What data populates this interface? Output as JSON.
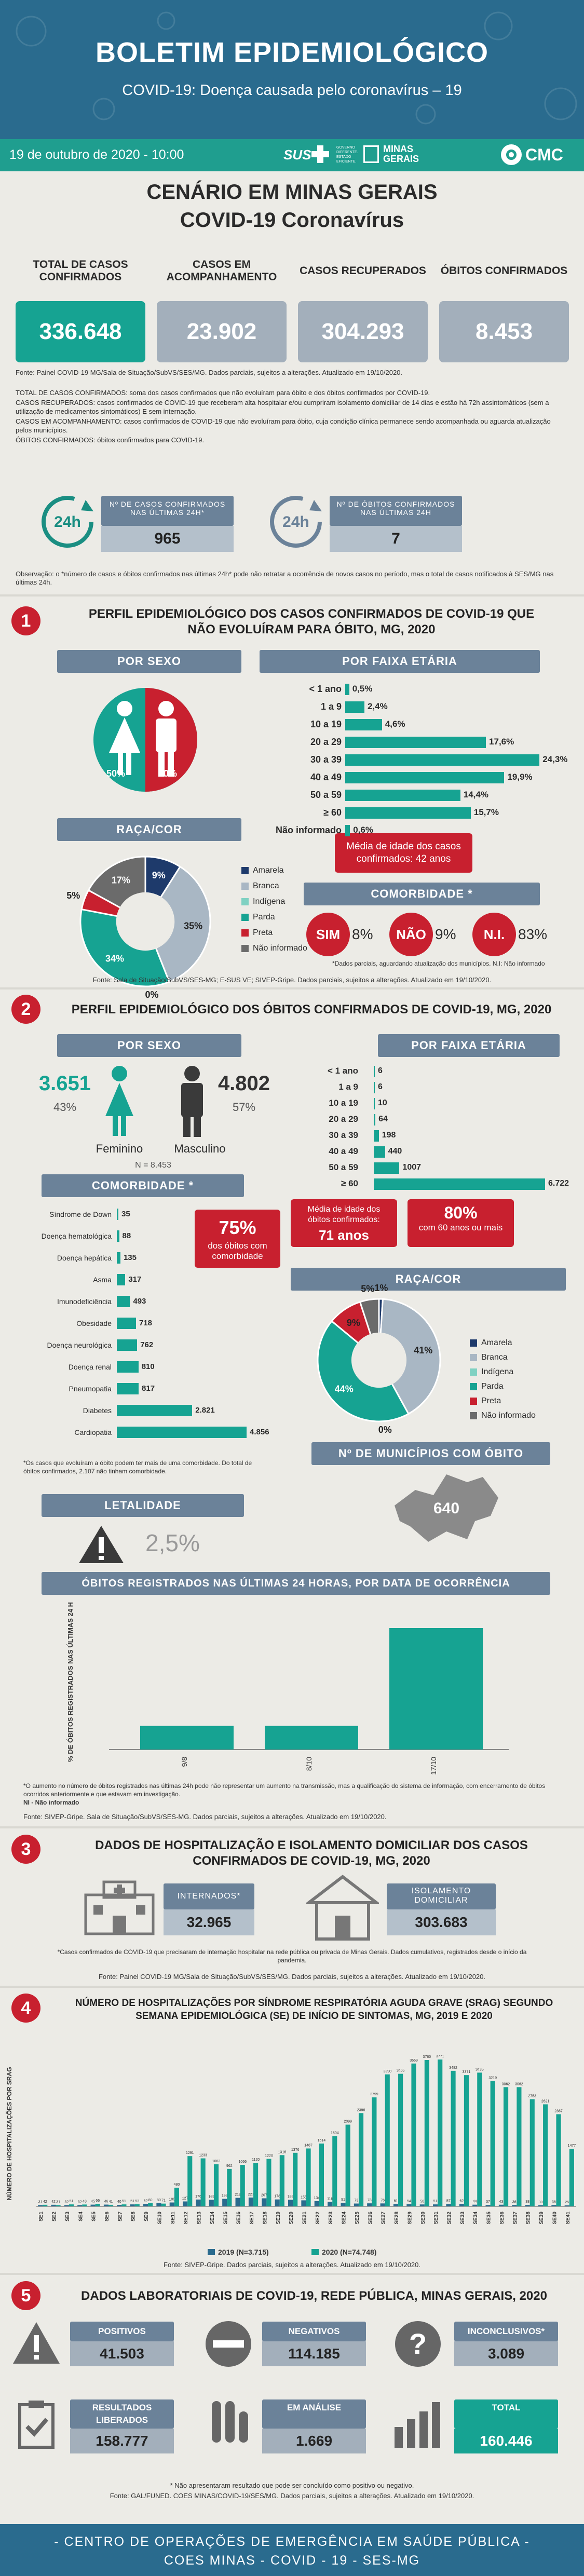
{
  "header": {
    "title": "BOLETIM EPIDEMIOLÓGICO",
    "subtitle": "COVID-19: Doença causada pelo coronavírus – 19",
    "date": "19 de outubro de 2020 - 10:00",
    "sus": "SUS",
    "governo": "GOVERNO DIFERENTE. ESTADO EFICIENTE.",
    "minas": "MINAS GERAIS",
    "cmc": "CMC"
  },
  "scenario": {
    "title": "CENÁRIO EM MINAS GERAIS",
    "subtitle": "COVID-19 Coronavírus"
  },
  "kpis": [
    {
      "label": "TOTAL DE CASOS CONFIRMADOS",
      "value": "336.648",
      "color": "#16a392"
    },
    {
      "label": "CASOS EM ACOMPANHAMENTO",
      "value": "23.902",
      "color": "#a3afbb"
    },
    {
      "label": "CASOS RECUPERADOS",
      "value": "304.293",
      "color": "#a3afbb"
    },
    {
      "label": "ÓBITOS CONFIRMADOS",
      "value": "8.453",
      "color": "#a3afbb"
    }
  ],
  "kpi_fonte": "Fonte: Painel COVID-19 MG/Sala de Situação/SubVS/SES/MG. Dados parciais, sujeitos a alterações. Atualizado em 19/10/2020.",
  "definitions": [
    "TOTAL DE CASOS CONFIRMADOS: soma dos casos confirmados que não evoluíram para óbito e dos óbitos confirmados por COVID-19.",
    "CASOS RECUPERADOS: casos confirmados de COVID-19 que receberam alta hospitalar e/ou cumpriram isolamento domiciliar de 14 dias e estão há 72h assintomáticos (sem a utilização de medicamentos sintomáticos) E sem internação.",
    "CASOS EM ACOMPANHAMENTO: casos confirmados de COVID-19 que não evoluíram para óbito, cuja condição clínica permanece sendo acompanhada ou aguarda atualização pelos municípios.",
    "ÓBITOS CONFIRMADOS: óbitos confirmados para COVID-19."
  ],
  "h24": {
    "cases_label": "Nº DE CASOS CONFIRMADOS NAS ÚLTIMAS 24H*",
    "cases": "965",
    "deaths_label": "Nº DE ÓBITOS CONFIRMADOS NAS ÚLTIMAS 24H",
    "deaths": "7",
    "icon_text": "24h",
    "obs": "Observação: o *número de casos e óbitos confirmados nas últimas 24h* pode não retratar a ocorrência de novos casos no período, mas o total de casos notificados à SES/MG nas últimas 24h."
  },
  "s1": {
    "num": "1",
    "title": "PERFIL EPIDEMIOLÓGICO DOS CASOS CONFIRMADOS DE COVID-19 QUE NÃO EVOLUÍRAM PARA ÓBITO, MG, 2020",
    "sexo_title": "POR SEXO",
    "sexo": [
      {
        "name": "Feminino",
        "pct": "50%",
        "color": "#16a392"
      },
      {
        "name": "Masculino",
        "pct": "50%",
        "color": "#c8202f"
      }
    ],
    "faixa_title": "POR FAIXA ETÁRIA",
    "faixa": [
      {
        "label": "< 1 ano",
        "value": 0.5,
        "text": "0,5%"
      },
      {
        "label": "1 a 9",
        "value": 2.4,
        "text": "2,4%"
      },
      {
        "label": "10 a 19",
        "value": 4.6,
        "text": "4,6%"
      },
      {
        "label": "20 a 29",
        "value": 17.6,
        "text": "17,6%"
      },
      {
        "label": "30 a 39",
        "value": 24.3,
        "text": "24,3%"
      },
      {
        "label": "40 a 49",
        "value": 19.9,
        "text": "19,9%"
      },
      {
        "label": "50 a 59",
        "value": 14.4,
        "text": "14,4%"
      },
      {
        "label": "≥ 60",
        "value": 15.7,
        "text": "15,7%"
      },
      {
        "label": "Não informado",
        "value": 0.6,
        "text": "0,6%"
      }
    ],
    "raca_title": "RAÇA/COR",
    "raca": [
      {
        "name": "Amarela",
        "value": 9,
        "text": "9%",
        "color": "#1e3a6b"
      },
      {
        "name": "Branca",
        "value": 35,
        "text": "35%",
        "color": "#a9b7c4"
      },
      {
        "name": "Indígena",
        "value": 0,
        "text": "0%",
        "color": "#7fd1c2"
      },
      {
        "name": "Parda",
        "value": 34,
        "text": "34%",
        "color": "#16a392"
      },
      {
        "name": "Preta",
        "value": 5,
        "text": "5%",
        "color": "#c8202f"
      },
      {
        "name": "Não informado",
        "value": 17,
        "text": "17%",
        "color": "#6b6b6b"
      }
    ],
    "media": "Média de idade dos casos confirmados: 42 anos",
    "comorb_title": "COMORBIDADE *",
    "comorb": [
      {
        "label": "SIM",
        "pct": "8%",
        "color": "#c8202f"
      },
      {
        "label": "NÃO",
        "pct": "9%",
        "color": "#c8202f"
      },
      {
        "label": "N.I.",
        "pct": "83%",
        "color": "#c8202f"
      }
    ],
    "comorb_note": "*Dados parciais, aguardando atualização dos municípios. N.I: Não informado",
    "fonte": "Fonte: Sala de Situação/SubVS/SES-MG; E-SUS VE; SIVEP-Gripe. Dados parciais, sujeitos a alterações. Atualizado em 19/10/2020."
  },
  "s2": {
    "num": "2",
    "title": "PERFIL EPIDEMIOLÓGICO DOS ÓBITOS CONFIRMADOS DE COVID-19, MG, 2020",
    "sexo_title": "POR SEXO",
    "fem": {
      "value": "3.651",
      "pct": "43%",
      "name": "Feminino"
    },
    "masc": {
      "value": "4.802",
      "pct": "57%",
      "name": "Masculino"
    },
    "n": "N = 8.453",
    "faixa_title": "POR FAIXA ETÁRIA",
    "faixa": [
      {
        "label": "< 1 ano",
        "value": 6,
        "text": "6"
      },
      {
        "label": "1 a 9",
        "value": 6,
        "text": "6"
      },
      {
        "label": "10 a 19",
        "value": 10,
        "text": "10"
      },
      {
        "label": "20 a 29",
        "value": 64,
        "text": "64"
      },
      {
        "label": "30 a 39",
        "value": 198,
        "text": "198"
      },
      {
        "label": "40 a 49",
        "value": 440,
        "text": "440"
      },
      {
        "label": "50 a 59",
        "value": 1007,
        "text": "1007"
      },
      {
        "label": "≥ 60",
        "value": 6722,
        "text": "6.722"
      }
    ],
    "media": "Média de idade dos óbitos confirmados:",
    "media_val": "71 anos",
    "pct80": "80%",
    "pct80_txt": "com 60 anos ou mais",
    "comorb_title": "COMORBIDADE *",
    "comorb": [
      {
        "label": "Síndrome de Down",
        "value": 35,
        "text": "35"
      },
      {
        "label": "Doença hematológica",
        "value": 88,
        "text": "88"
      },
      {
        "label": "Doença hepática",
        "value": 135,
        "text": "135"
      },
      {
        "label": "Asma",
        "value": 317,
        "text": "317"
      },
      {
        "label": "Imunodeficiência",
        "value": 493,
        "text": "493"
      },
      {
        "label": "Obesidade",
        "value": 718,
        "text": "718"
      },
      {
        "label": "Doença neurológica",
        "value": 762,
        "text": "762"
      },
      {
        "label": "Doença renal",
        "value": 810,
        "text": "810"
      },
      {
        "label": "Pneumopatia",
        "value": 817,
        "text": "817"
      },
      {
        "label": "Diabetes",
        "value": 2821,
        "text": "2.821"
      },
      {
        "label": "Cardiopatia",
        "value": 4856,
        "text": "4.856"
      }
    ],
    "comorb75": "75%",
    "comorb75_txt": "dos óbitos com comorbidade",
    "comorb_note": "*Os casos que evoluíram a óbito podem ter mais de uma comorbidade. Do total de óbitos confirmados, 2.107 não tinham comorbidade.",
    "raca_title": "RAÇA/COR",
    "raca": [
      {
        "name": "Amarela",
        "value": 1,
        "text": "1%",
        "color": "#1e3a6b"
      },
      {
        "name": "Branca",
        "value": 41,
        "text": "41%",
        "color": "#a9b7c4"
      },
      {
        "name": "Indígena",
        "value": 0,
        "text": "0%",
        "color": "#7fd1c2"
      },
      {
        "name": "Parda",
        "value": 44,
        "text": "44%",
        "color": "#16a392"
      },
      {
        "name": "Preta",
        "value": 9,
        "text": "9%",
        "color": "#c8202f"
      },
      {
        "name": "Não informado",
        "value": 5,
        "text": "5%",
        "color": "#6b6b6b"
      }
    ],
    "mun_title": "Nº DE MUNICÍPIOS COM ÓBITO",
    "mun": "640",
    "let_title": "LETALIDADE",
    "let": "2,5%",
    "daily_title": "ÓBITOS REGISTRADOS NAS ÚLTIMAS 24 HORAS, POR DATA DE OCORRÊNCIA",
    "daily_ylabel": "% DE ÓBITOS REGISTRADOS NAS ÚLTIMAS 24 H",
    "daily": {
      "categories": [
        "9/8",
        "8/10",
        "17/10"
      ],
      "values": [
        14,
        14,
        72
      ]
    },
    "daily_note": "*O aumento no número de óbitos registrados nas últimas 24h pode não representar um aumento na transmissão, mas a qualificação do sistema de informação, com encerramento de óbitos ocorridos anteriormente e que estavam em investigação.",
    "daily_ni": "NI - Não informado",
    "fonte": "Fonte: SIVEP-Gripe. Sala de Situação/SubVS/SES-MG. Dados parciais, sujeitos a alterações. Atualizado em 19/10/2020."
  },
  "s3": {
    "num": "3",
    "title": "DADOS DE HOSPITALIZAÇÃO E ISOLAMENTO DOMICILIAR DOS CASOS CONFIRMADOS DE COVID-19, MG, 2020",
    "int_label": "INTERNADOS*",
    "int": "32.965",
    "iso_label": "ISOLAMENTO DOMICILIAR",
    "iso": "303.683",
    "note": "*Casos confirmados de COVID-19 que precisaram de internação hospitalar na rede pública ou privada de Minas Gerais. Dados cumulativos, registrados desde o início da pandemia.",
    "fonte": "Fonte: Painel COVID-19 MG/Sala de Situação/SubVS/SES/MG. Dados parciais, sujeitos a alterações. Atualizado em 19/10/2020."
  },
  "s4": {
    "num": "4",
    "title": "NÚMERO DE HOSPITALIZAÇÕES POR SÍNDROME RESPIRATÓRIA AGUDA GRAVE (SRAG) SEGUNDO SEMANA EPIDEMIOLÓGICA (SE) DE INÍCIO DE SINTOMAS, MG, 2019 E 2020",
    "ylabel": "NÚMERO DE HOSPITALIZAÇÕES POR SRAG",
    "legend": [
      "2019 (N=3.715)",
      "2020 (N=74.748)"
    ],
    "fonte": "Fonte: SIVEP-Gripe. Dados parciais, sujeitos a alterações. Atualizado em 19/10/2020."
  },
  "chart_data": {
    "type": "bar",
    "title": "NÚMERO DE HOSPITALIZAÇÕES POR SÍNDROME RESPIRATÓRIA AGUDA GRAVE (SRAG) SEGUNDO SEMANA EPIDEMIOLÓGICA (SE) DE INÍCIO DE SINTOMAS, MG, 2019 E 2020",
    "ylabel": "NÚMERO DE HOSPITALIZAÇÕES POR SRAG",
    "categories": [
      "SE1",
      "SE2",
      "SE3",
      "SE4",
      "SE5",
      "SE6",
      "SE7",
      "SE8",
      "SE9",
      "SE10",
      "SE11",
      "SE12",
      "SE13",
      "SE14",
      "SE15",
      "SE16",
      "SE17",
      "SE18",
      "SE19",
      "SE20",
      "SE21",
      "SE22",
      "SE23",
      "SE24",
      "SE25",
      "SE26",
      "SE27",
      "SE28",
      "SE29",
      "SE30",
      "SE31",
      "SE32",
      "SE33",
      "SE34",
      "SE35",
      "SE36",
      "SE37",
      "SE38",
      "SE39",
      "SE40",
      "SE41"
    ],
    "series": [
      {
        "name": "2019 (N=3.715)",
        "color": "#2a6b8e",
        "values": [
          31,
          42,
          32,
          32,
          45,
          46,
          40,
          51,
          62,
          80,
          100,
          127,
          176,
          169,
          193,
          219,
          227,
          207,
          178,
          169,
          155,
          134,
          116,
          91,
          73,
          78,
          76,
          61,
          54,
          50,
          51,
          57,
          62,
          44,
          37,
          43,
          36,
          38,
          30,
          36,
          25
        ]
      },
      {
        "name": "2020 (N=74.748)",
        "color": "#16a392",
        "values": [
          42,
          31,
          51,
          48,
          66,
          41,
          51,
          53,
          80,
          71,
          480,
          1291,
          1233,
          1082,
          962,
          1066,
          1120,
          1220,
          1316,
          1376,
          1487,
          1614,
          1804,
          2099,
          2396,
          2799,
          3390,
          3405,
          3669,
          3760,
          3771,
          3482,
          3371,
          3435,
          3219,
          3062,
          3062,
          2753,
          2621,
          2367,
          1477
        ]
      }
    ]
  },
  "s5": {
    "num": "5",
    "title": "DADOS LABORATORIAIS DE COVID-19, REDE PÚBLICA, MINAS GERAIS, 2020",
    "items": [
      {
        "label": "POSITIVOS",
        "value": "41.503",
        "lc": "#6b8299",
        "vc": "#a3afbb"
      },
      {
        "label": "NEGATIVOS",
        "value": "114.185",
        "lc": "#6b8299",
        "vc": "#a3afbb"
      },
      {
        "label": "INCONCLUSIVOS*",
        "value": "3.089",
        "lc": "#6b8299",
        "vc": "#a3afbb"
      },
      {
        "label": "RESULTADOS LIBERADOS",
        "value": "158.777",
        "lc": "#6b8299",
        "vc": "#a3afbb"
      },
      {
        "label": "EM ANÁLISE",
        "value": "1.669",
        "lc": "#6b8299",
        "vc": "#a3afbb"
      },
      {
        "label": "TOTAL",
        "value": "160.446",
        "lc": "#16a392",
        "vc": "#16a392"
      }
    ],
    "note": "* Não apresentaram resultado que pode ser concluído como positivo ou negativo.",
    "fonte": "Fonte: GAL/FUNED. COES MINAS/COVID-19/SES/MG. Dados parciais, sujeitos a alterações. Atualizado em 19/10/2020."
  },
  "footer": {
    "line1": "- CENTRO DE OPERAÇÕES DE EMERGÊNCIA EM SAÚDE PÚBLICA -",
    "line2": "COES MINAS - COVID - 19 - SES-MG"
  }
}
